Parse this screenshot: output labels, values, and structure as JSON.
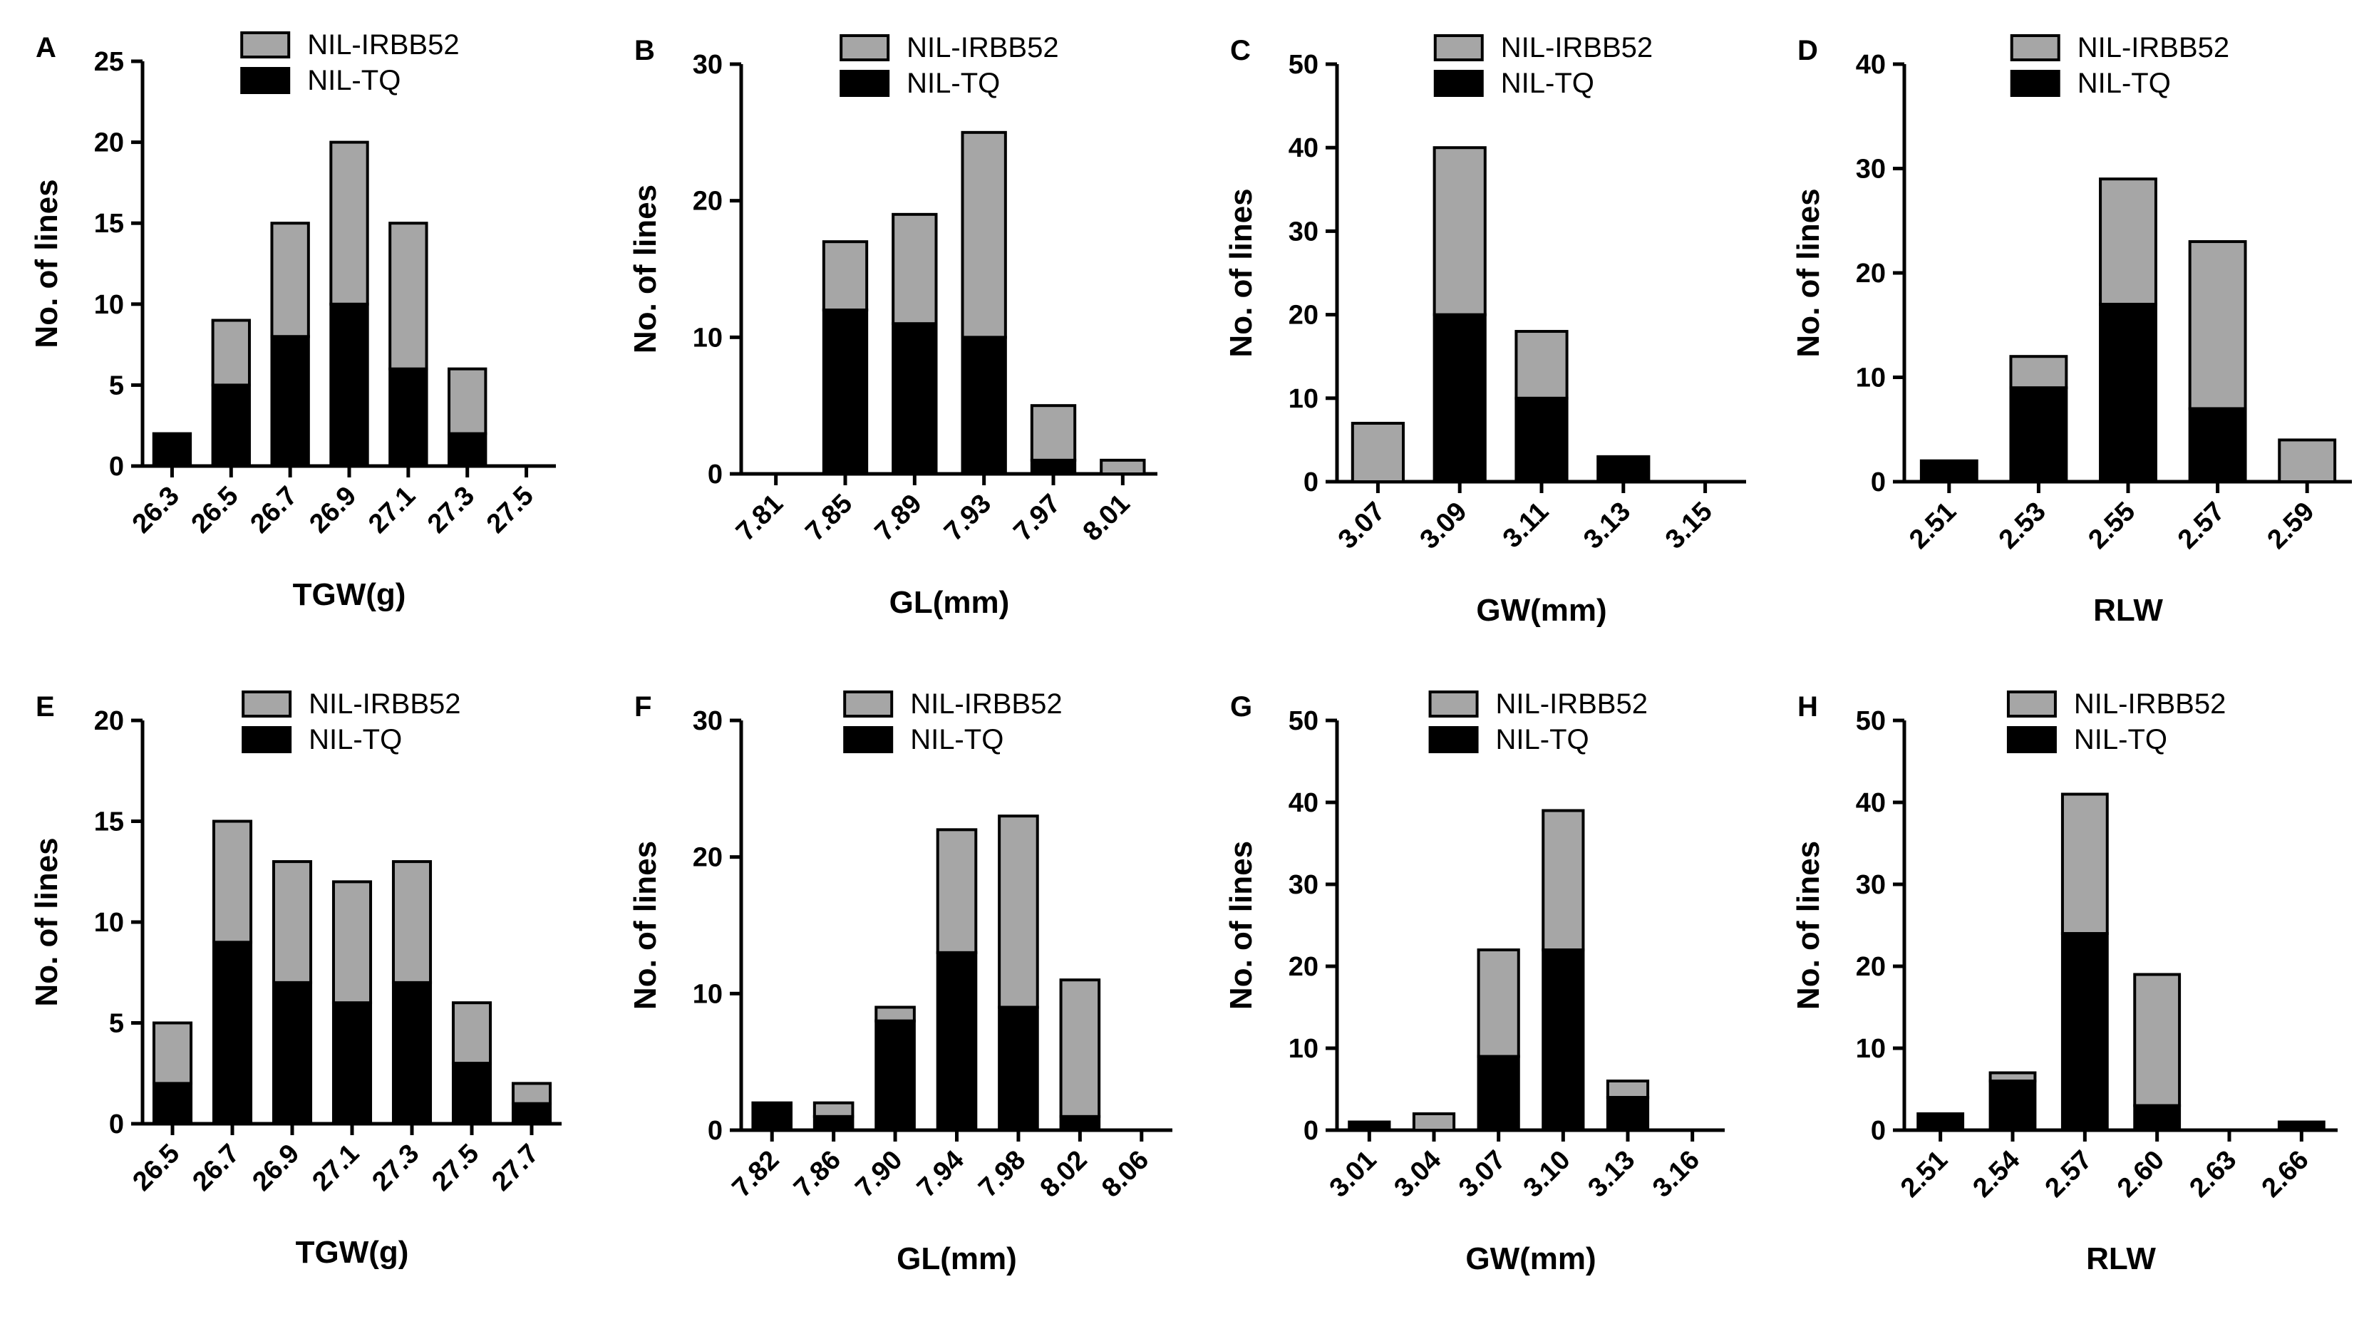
{
  "series_names": [
    "NIL-IRBB52",
    "NIL-TQ"
  ],
  "colors": {
    "irbb52": "#a6a6a6",
    "tq": "#000000"
  },
  "chart_data": [
    {
      "panel": "A",
      "type": "bar",
      "stacked": true,
      "xlabel": "TGW(g)",
      "ylabel": "No. of lines",
      "ylim": [
        0,
        25
      ],
      "yticks": [
        "0",
        "5",
        "10",
        "15",
        "20",
        "25"
      ],
      "categories": [
        "26.3",
        "26.5",
        "26.7",
        "26.9",
        "27.1",
        "27.3",
        "27.5"
      ],
      "series": [
        {
          "name": "NIL-TQ",
          "values": [
            2,
            5,
            8,
            10,
            6,
            2,
            0
          ]
        },
        {
          "name": "NIL-IRBB52",
          "values": [
            0,
            4,
            7,
            10,
            9,
            4,
            0
          ]
        }
      ]
    },
    {
      "panel": "B",
      "type": "bar",
      "stacked": true,
      "xlabel": "GL(mm)",
      "ylabel": "No. of lines",
      "ylim": [
        0,
        30
      ],
      "yticks": [
        "0",
        "10",
        "20",
        "30"
      ],
      "categories": [
        "7.81",
        "7.85",
        "7.89",
        "7.93",
        "7.97",
        "8.01"
      ],
      "series": [
        {
          "name": "NIL-TQ",
          "values": [
            0,
            12,
            11,
            10,
            1,
            0
          ]
        },
        {
          "name": "NIL-IRBB52",
          "values": [
            0,
            5,
            8,
            15,
            4,
            1
          ]
        }
      ]
    },
    {
      "panel": "C",
      "type": "bar",
      "stacked": true,
      "xlabel": "GW(mm)",
      "ylabel": "No. of lines",
      "ylim": [
        0,
        50
      ],
      "yticks": [
        "0",
        "10",
        "20",
        "30",
        "40",
        "50"
      ],
      "categories": [
        "3.07",
        "3.09",
        "3.11",
        "3.13",
        "3.15"
      ],
      "series": [
        {
          "name": "NIL-TQ",
          "values": [
            0,
            20,
            10,
            3,
            0
          ]
        },
        {
          "name": "NIL-IRBB52",
          "values": [
            7,
            20,
            8,
            0,
            0
          ]
        }
      ]
    },
    {
      "panel": "D",
      "type": "bar",
      "stacked": true,
      "xlabel": "RLW",
      "ylabel": "No. of lines",
      "ylim": [
        0,
        40
      ],
      "yticks": [
        "0",
        "10",
        "20",
        "30",
        "40"
      ],
      "categories": [
        "2.51",
        "2.53",
        "2.55",
        "2.57",
        "2.59"
      ],
      "series": [
        {
          "name": "NIL-TQ",
          "values": [
            2,
            9,
            17,
            7,
            0
          ]
        },
        {
          "name": "NIL-IRBB52",
          "values": [
            0,
            3,
            12,
            16,
            4
          ]
        }
      ]
    },
    {
      "panel": "E",
      "type": "bar",
      "stacked": true,
      "xlabel": "TGW(g)",
      "ylabel": "No. of lines",
      "ylim": [
        0,
        20
      ],
      "yticks": [
        "0",
        "5",
        "10",
        "15",
        "20"
      ],
      "categories": [
        "26.5",
        "26.7",
        "26.9",
        "27.1",
        "27.3",
        "27.5",
        "27.7"
      ],
      "series": [
        {
          "name": "NIL-TQ",
          "values": [
            2,
            9,
            7,
            6,
            7,
            3,
            1
          ]
        },
        {
          "name": "NIL-IRBB52",
          "values": [
            3,
            6,
            6,
            6,
            6,
            3,
            1
          ]
        }
      ]
    },
    {
      "panel": "F",
      "type": "bar",
      "stacked": true,
      "xlabel": "GL(mm)",
      "ylabel": "No. of lines",
      "ylim": [
        0,
        30
      ],
      "yticks": [
        "0",
        "10",
        "20",
        "30"
      ],
      "categories": [
        "7.82",
        "7.86",
        "7.90",
        "7.94",
        "7.98",
        "8.02",
        "8.06"
      ],
      "series": [
        {
          "name": "NIL-TQ",
          "values": [
            2,
            1,
            8,
            13,
            9,
            1,
            0
          ]
        },
        {
          "name": "NIL-IRBB52",
          "values": [
            0,
            1,
            1,
            9,
            14,
            10,
            0
          ]
        }
      ]
    },
    {
      "panel": "G",
      "type": "bar",
      "stacked": true,
      "xlabel": "GW(mm)",
      "ylabel": "No. of lines",
      "ylim": [
        0,
        50
      ],
      "yticks": [
        "0",
        "10",
        "20",
        "30",
        "40",
        "50"
      ],
      "categories": [
        "3.01",
        "3.04",
        "3.07",
        "3.10",
        "3.13",
        "3.16"
      ],
      "series": [
        {
          "name": "NIL-TQ",
          "values": [
            1,
            0,
            9,
            22,
            4,
            0
          ]
        },
        {
          "name": "NIL-IRBB52",
          "values": [
            0,
            2,
            13,
            17,
            2,
            0
          ]
        }
      ]
    },
    {
      "panel": "H",
      "type": "bar",
      "stacked": true,
      "xlabel": "RLW",
      "ylabel": "No. of lines",
      "ylim": [
        0,
        50
      ],
      "yticks": [
        "0",
        "10",
        "20",
        "30",
        "40",
        "50"
      ],
      "categories": [
        "2.51",
        "2.54",
        "2.57",
        "2.60",
        "2.63",
        "2.66"
      ],
      "series": [
        {
          "name": "NIL-TQ",
          "values": [
            2,
            6,
            24,
            3,
            0,
            1
          ]
        },
        {
          "name": "NIL-IRBB52",
          "values": [
            0,
            1,
            17,
            16,
            0,
            0
          ]
        }
      ]
    }
  ]
}
